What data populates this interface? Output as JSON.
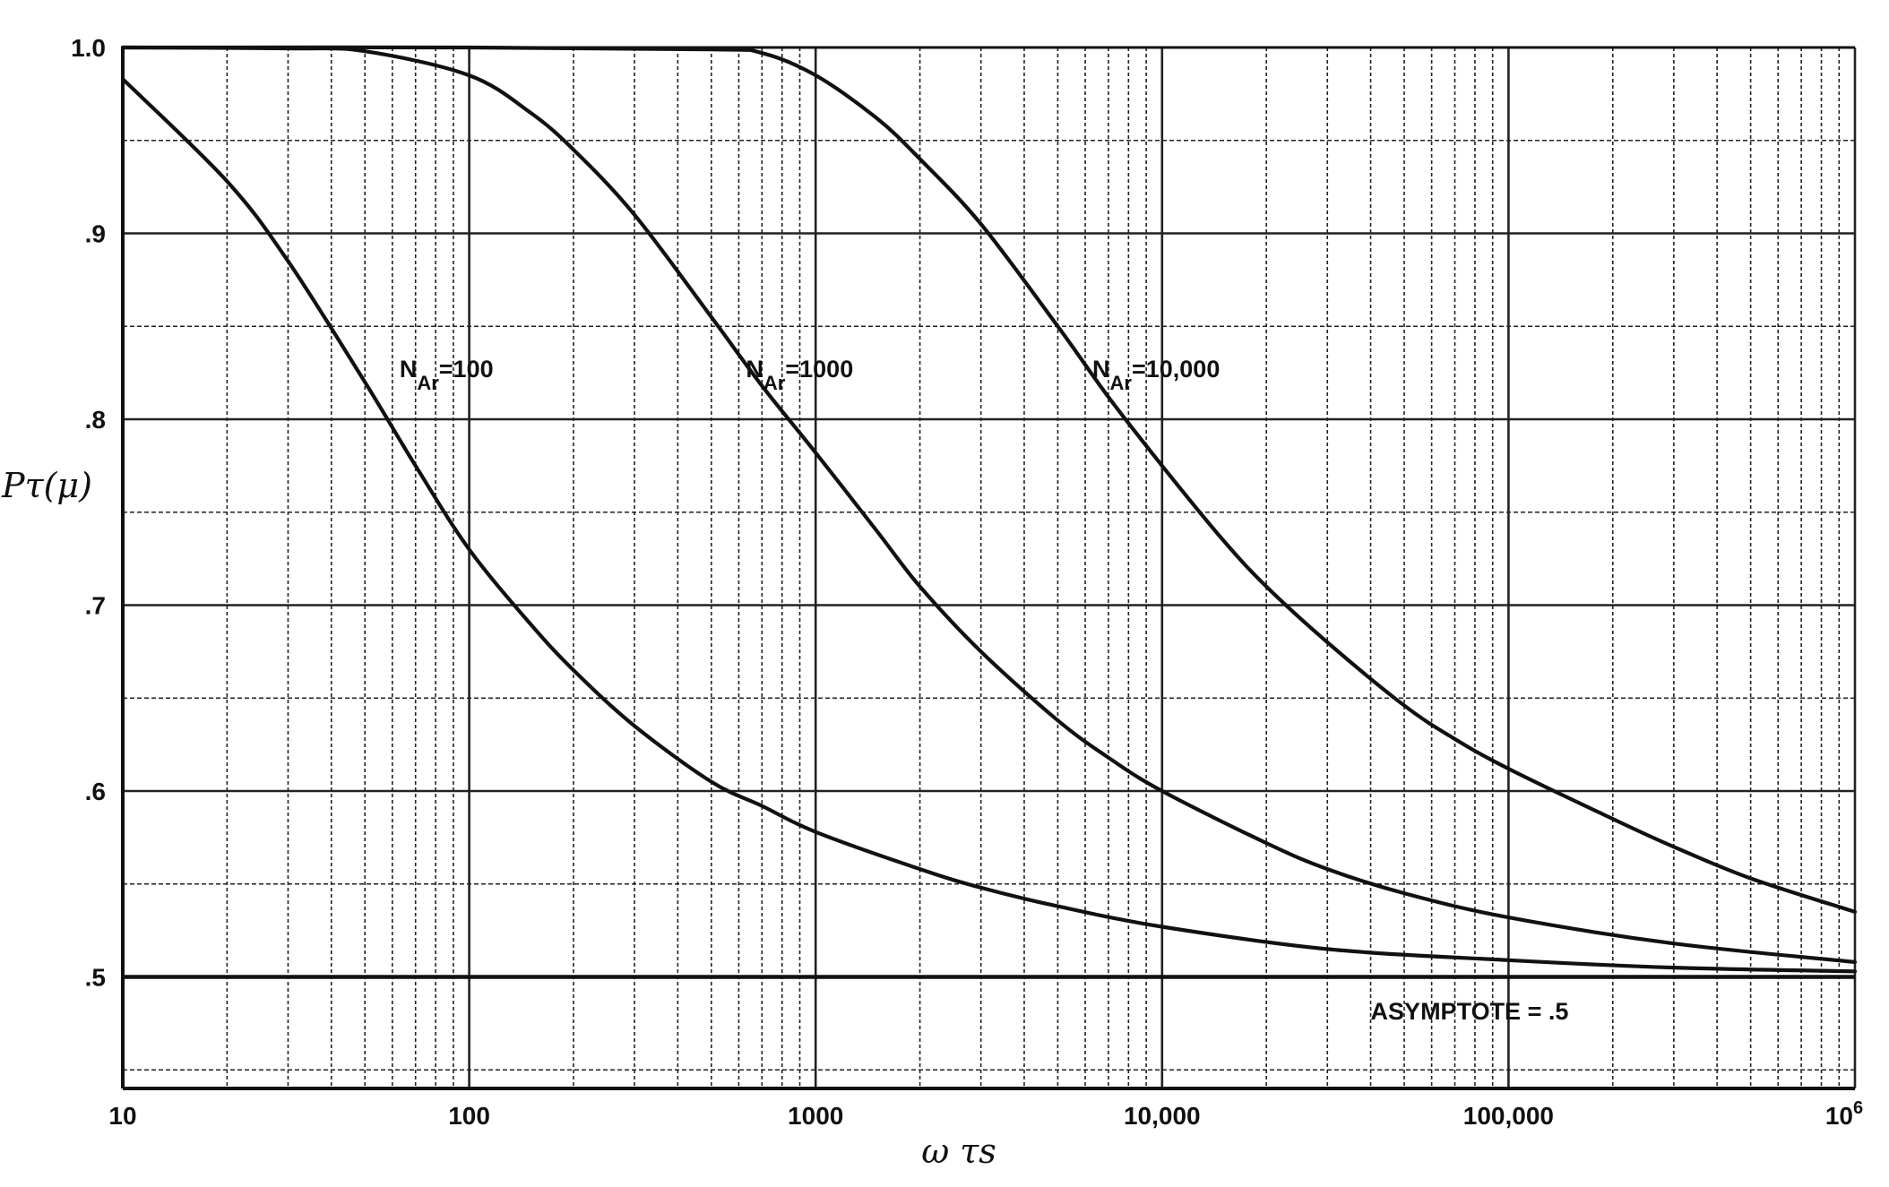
{
  "chart_data": {
    "type": "line",
    "title": "",
    "xlabel": "ω τs",
    "ylabel": "Pτ(μ)",
    "x_scale": "log",
    "xlim": [
      10,
      1000000
    ],
    "ylim": [
      0.44,
      1.0
    ],
    "grid": true,
    "x_ticks": [
      {
        "value": 10,
        "label": "10"
      },
      {
        "value": 100,
        "label": "100"
      },
      {
        "value": 1000,
        "label": "1000"
      },
      {
        "value": 10000,
        "label": "10,000"
      },
      {
        "value": 100000,
        "label": "100,000"
      },
      {
        "value": 1000000,
        "label": "10",
        "sup": "6"
      }
    ],
    "y_ticks": [
      {
        "value": 1.0,
        "label": "1.0"
      },
      {
        "value": 0.9,
        "label": ".9"
      },
      {
        "value": 0.8,
        "label": ".8"
      },
      {
        "value": 0.7,
        "label": ".7"
      },
      {
        "value": 0.6,
        "label": ".6"
      },
      {
        "value": 0.5,
        "label": ".5"
      }
    ],
    "series": [
      {
        "label_main": "N",
        "label_sub": "Ar",
        "label_rest": "=100",
        "label_at": [
          60,
          0.812
        ],
        "x": [
          10,
          20,
          30,
          50,
          70,
          100,
          150,
          200,
          300,
          500,
          700,
          1000,
          2000,
          3000,
          5000,
          10000,
          30000,
          100000,
          300000,
          1000000
        ],
        "y": [
          0.983,
          0.928,
          0.885,
          0.82,
          0.775,
          0.73,
          0.69,
          0.665,
          0.635,
          0.605,
          0.592,
          0.578,
          0.558,
          0.548,
          0.538,
          0.527,
          0.515,
          0.509,
          0.505,
          0.503
        ]
      },
      {
        "label_main": "N",
        "label_sub": "Ar",
        "label_rest": "=1000",
        "label_at": [
          600,
          0.812
        ],
        "x": [
          10,
          30,
          50,
          100,
          150,
          200,
          300,
          500,
          700,
          1000,
          1500,
          2000,
          3000,
          5000,
          7000,
          10000,
          20000,
          30000,
          50000,
          100000,
          300000,
          1000000
        ],
        "y": [
          1.0,
          0.9995,
          0.998,
          0.985,
          0.965,
          0.945,
          0.91,
          0.855,
          0.818,
          0.782,
          0.74,
          0.71,
          0.675,
          0.638,
          0.618,
          0.6,
          0.572,
          0.558,
          0.545,
          0.532,
          0.518,
          0.508
        ]
      },
      {
        "label_main": "N",
        "label_sub": "Ar",
        "label_rest": "=10,000",
        "label_at": [
          6000,
          0.812
        ],
        "x": [
          10,
          100,
          500,
          700,
          1000,
          1500,
          2000,
          3000,
          5000,
          7000,
          10000,
          15000,
          20000,
          30000,
          50000,
          70000,
          100000,
          200000,
          300000,
          500000,
          1000000
        ],
        "y": [
          1.0,
          1.0,
          0.999,
          0.997,
          0.985,
          0.962,
          0.94,
          0.905,
          0.85,
          0.812,
          0.775,
          0.735,
          0.71,
          0.68,
          0.646,
          0.628,
          0.612,
          0.585,
          0.57,
          0.553,
          0.535
        ]
      }
    ],
    "annotations": [
      {
        "text": "ASYMPTOTE = .5",
        "x": 40000,
        "y": 0.477
      }
    ],
    "asymptote": 0.5
  }
}
